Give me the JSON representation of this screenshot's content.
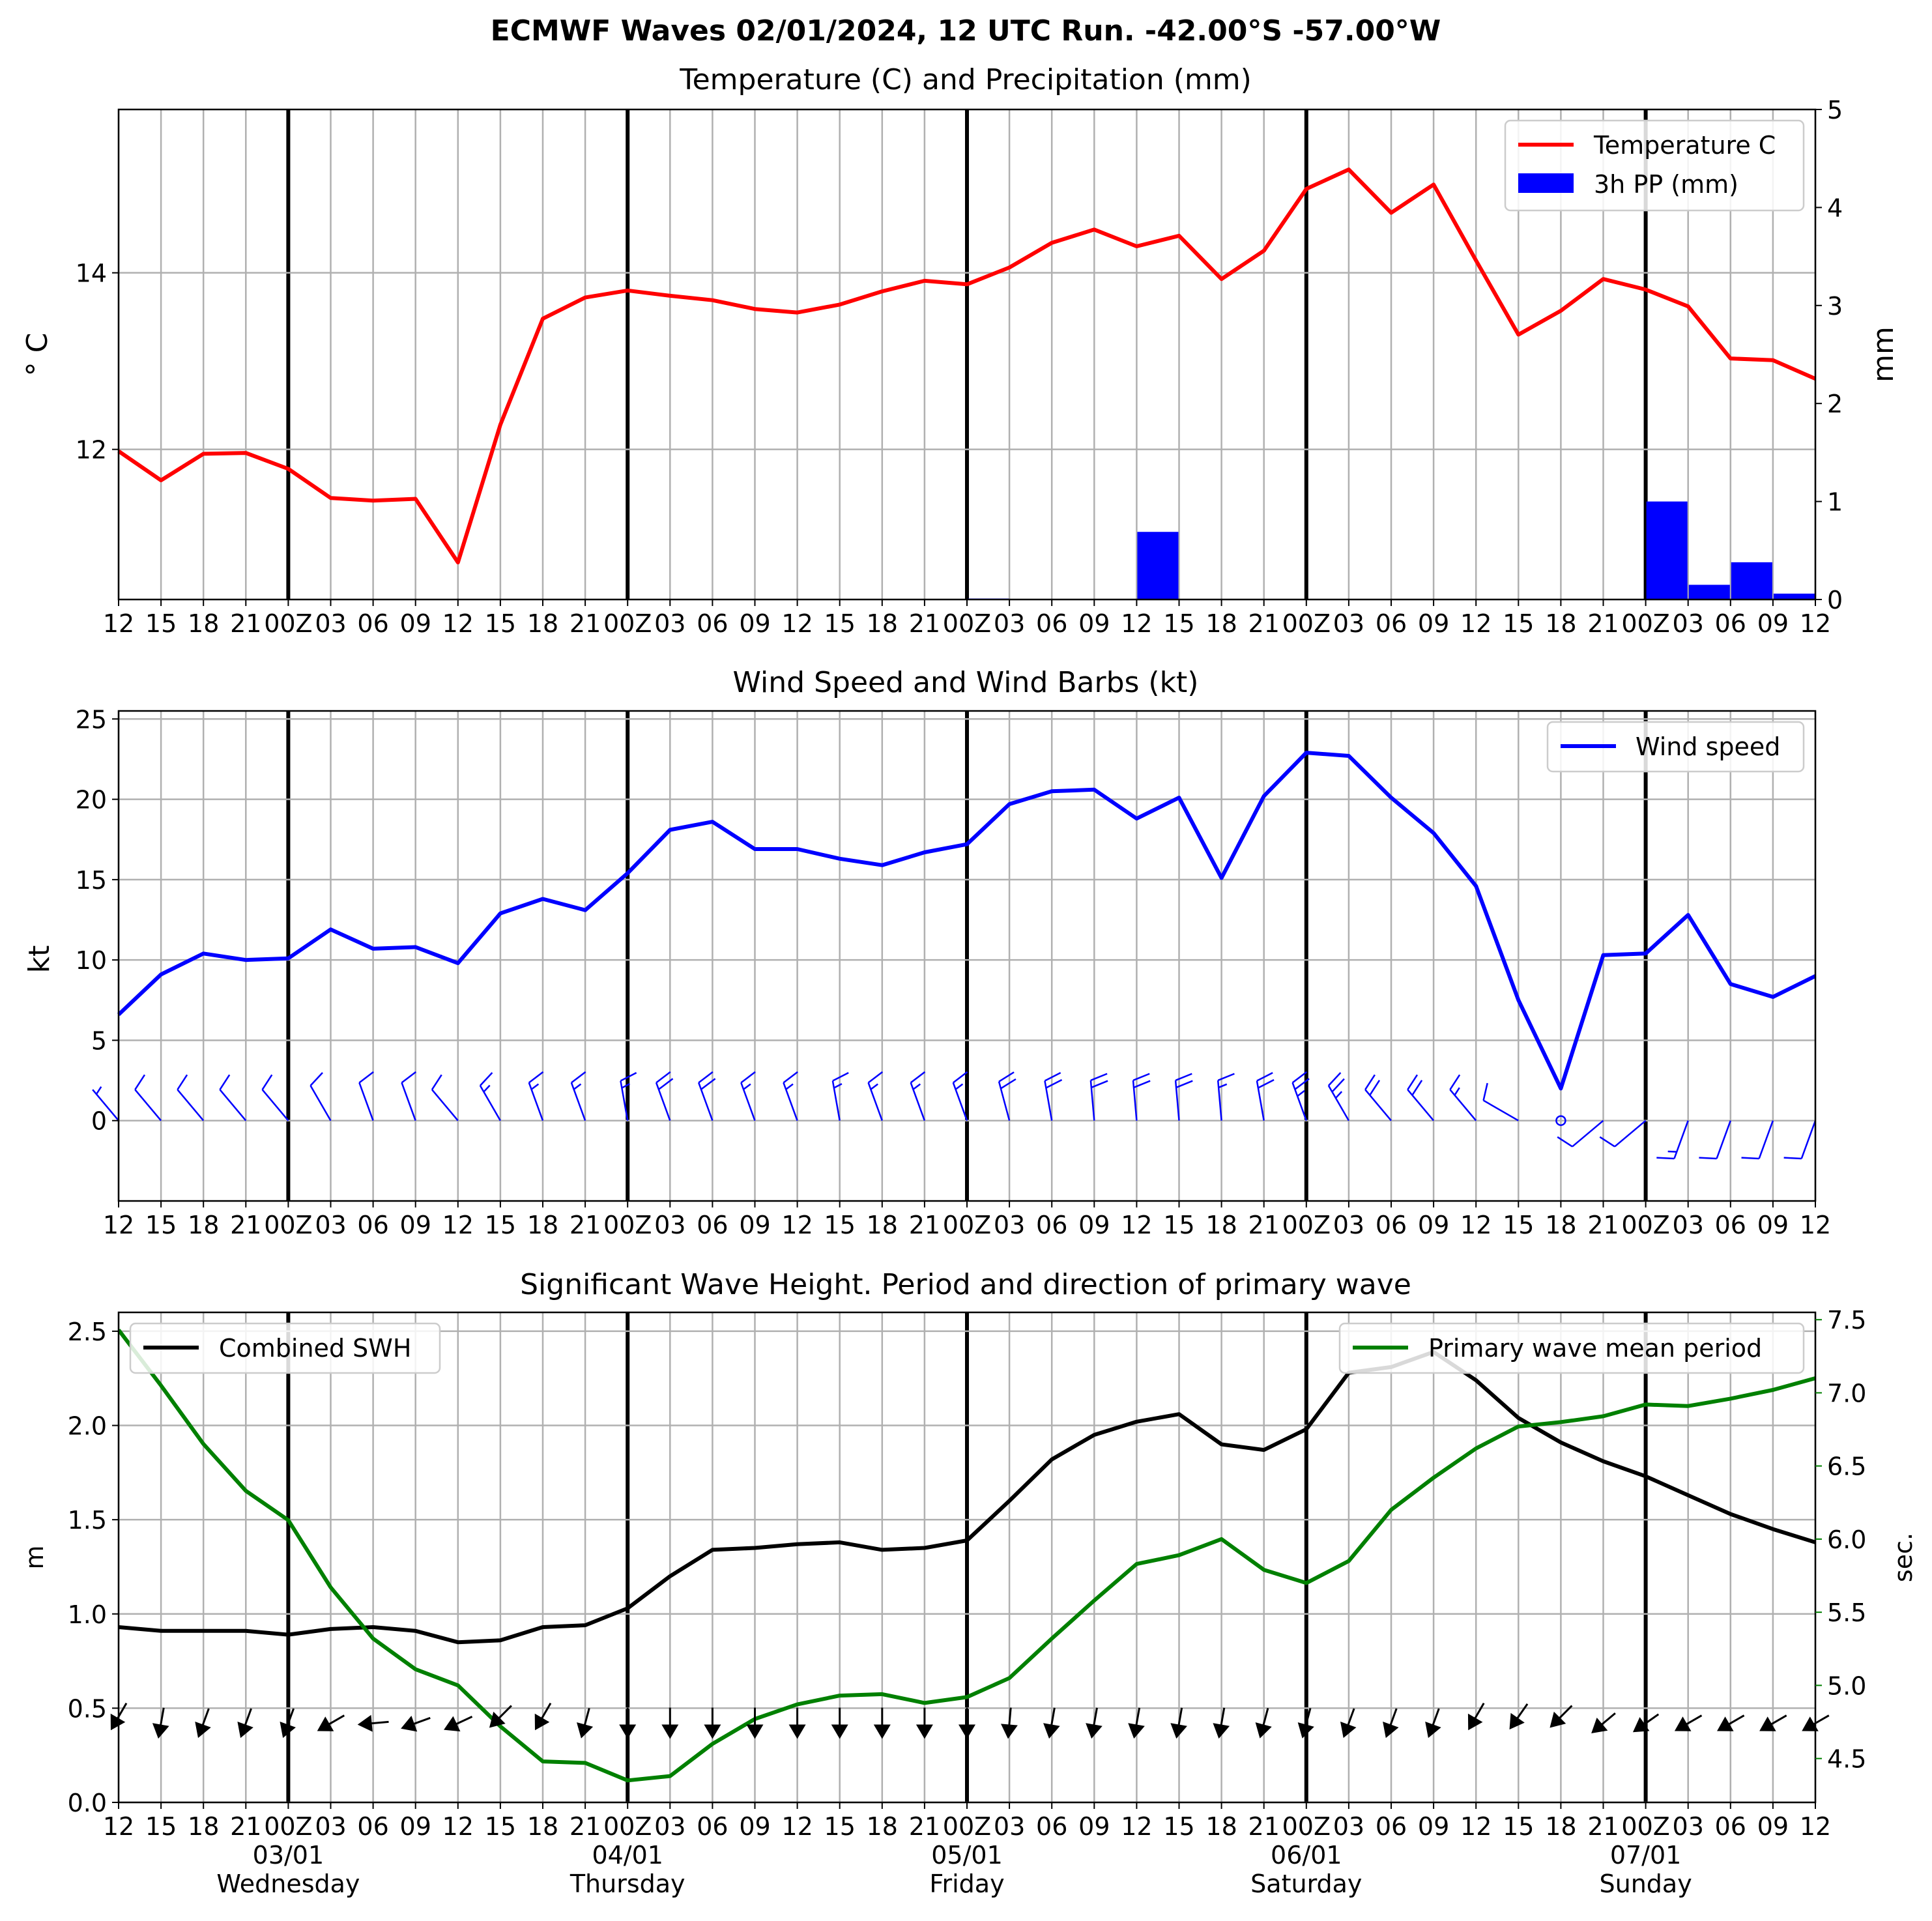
{
  "title": "ECMWF Waves 02/01/2024, 12 UTC Run. -42.00°S -57.00°W",
  "x_ticks": [
    "12",
    "15",
    "18",
    "21",
    "00Z",
    "03",
    "06",
    "09",
    "12",
    "15",
    "18",
    "21",
    "00Z",
    "03",
    "06",
    "09",
    "12",
    "15",
    "18",
    "21",
    "00Z",
    "03",
    "06",
    "09",
    "12",
    "15",
    "18",
    "21",
    "00Z",
    "03",
    "06",
    "09",
    "12",
    "15",
    "18",
    "21",
    "00Z",
    "03",
    "06",
    "09",
    "12"
  ],
  "day_labels": [
    {
      "date": "03/01",
      "day": "Wednesday",
      "index": 4
    },
    {
      "date": "04/01",
      "day": "Thursday",
      "index": 12
    },
    {
      "date": "05/01",
      "day": "Friday",
      "index": 20
    },
    {
      "date": "06/01",
      "day": "Saturday",
      "index": 28
    },
    {
      "date": "07/01",
      "day": "Sunday",
      "index": 36
    }
  ],
  "colors": {
    "temperature": "#ff0000",
    "precip": "#0000ff",
    "wind": "#0000ff",
    "swh": "#000000",
    "period": "#008000",
    "grid": "#b0b0b0"
  },
  "chart_data": [
    {
      "id": "temp",
      "type": "line",
      "title": "Temperature (C) and Precipitation (mm)",
      "ylabel": "$^\\circ$C",
      "ylabel_display": "° C",
      "y2label": "mm",
      "ylim": [
        10.3,
        15.85
      ],
      "y2lim": [
        0,
        5
      ],
      "yticks": [
        12,
        14
      ],
      "y2ticks": [
        0,
        1,
        2,
        3,
        4,
        5
      ],
      "legend_position": "top-right",
      "series": [
        {
          "name": "Temperature C",
          "values": [
            11.98,
            11.65,
            11.95,
            11.96,
            11.78,
            11.45,
            11.42,
            11.44,
            10.72,
            12.28,
            13.48,
            13.72,
            13.8,
            13.74,
            13.69,
            13.59,
            13.55,
            13.64,
            13.79,
            13.91,
            13.87,
            14.06,
            14.34,
            14.49,
            14.3,
            14.42,
            13.93,
            14.25,
            14.95,
            15.17,
            14.68,
            15.0,
            14.14,
            13.3,
            13.57,
            13.93,
            13.81,
            13.62,
            13.03,
            13.01,
            12.8
          ]
        },
        {
          "name": "3h PP (mm)",
          "kind": "bar",
          "axis": "right",
          "values": [
            0,
            0,
            0,
            0,
            0,
            0,
            0,
            0,
            0,
            0,
            0,
            0,
            0,
            0,
            0,
            0,
            0,
            0,
            0,
            0,
            0.01,
            0,
            0,
            0,
            0.69,
            0,
            0,
            0,
            0,
            0,
            0,
            0,
            0,
            0,
            0,
            0,
            1.0,
            0.15,
            0.38,
            0.06
          ]
        }
      ]
    },
    {
      "id": "wind",
      "type": "line",
      "title": "Wind Speed and Wind Barbs (kt)",
      "ylabel": "kt",
      "ylim": [
        -5,
        25.5
      ],
      "yticks": [
        0,
        5,
        10,
        15,
        20,
        25
      ],
      "legend_position": "top-right",
      "series": [
        {
          "name": "Wind speed",
          "values": [
            6.6,
            9.1,
            10.4,
            10.0,
            10.1,
            11.9,
            10.7,
            10.8,
            9.8,
            12.9,
            13.8,
            13.1,
            15.4,
            18.1,
            18.6,
            16.9,
            16.9,
            16.3,
            15.9,
            16.7,
            17.2,
            19.7,
            20.5,
            20.6,
            18.8,
            20.1,
            15.1,
            20.2,
            22.9,
            22.7,
            20.1,
            17.9,
            14.6,
            7.5,
            2.0,
            10.3,
            10.4,
            12.8,
            8.5,
            7.7,
            9.0
          ]
        }
      ],
      "barbs_direction_deg": [
        320,
        320,
        320,
        320,
        320,
        330,
        340,
        340,
        320,
        330,
        340,
        340,
        350,
        340,
        340,
        340,
        340,
        350,
        340,
        340,
        340,
        345,
        350,
        355,
        355,
        355,
        355,
        350,
        340,
        330,
        320,
        320,
        320,
        300,
        0,
        230,
        230,
        200,
        200,
        200,
        200
      ]
    },
    {
      "id": "wave",
      "type": "line",
      "title": "Significant Wave Height. Period and direction of primary wave",
      "ylabel": "m",
      "y2label": "sec.",
      "ylim": [
        0,
        2.6
      ],
      "y2lim": [
        4.2,
        7.55
      ],
      "yticks": [
        0.0,
        0.5,
        1.0,
        1.5,
        2.0,
        2.5
      ],
      "y2ticks": [
        4.5,
        5.0,
        5.5,
        6.0,
        6.5,
        7.0,
        7.5
      ],
      "legend_position": "top-left / top-right",
      "series": [
        {
          "name": "Combined SWH",
          "values": [
            0.93,
            0.91,
            0.91,
            0.91,
            0.89,
            0.92,
            0.93,
            0.91,
            0.85,
            0.86,
            0.93,
            0.94,
            1.03,
            1.2,
            1.34,
            1.35,
            1.37,
            1.38,
            1.34,
            1.35,
            1.39,
            1.6,
            1.82,
            1.95,
            2.02,
            2.06,
            1.9,
            1.87,
            1.98,
            2.28,
            2.31,
            2.39,
            2.24,
            2.04,
            1.91,
            1.81,
            1.73,
            1.63,
            1.53,
            1.45,
            1.38
          ]
        },
        {
          "name": "Primary wave mean period",
          "axis": "right",
          "values": [
            7.43,
            7.05,
            6.65,
            6.33,
            6.13,
            5.67,
            5.32,
            5.11,
            5.0,
            4.72,
            4.48,
            4.47,
            4.35,
            4.38,
            4.6,
            4.77,
            4.87,
            4.93,
            4.94,
            4.88,
            4.92,
            5.05,
            5.32,
            5.58,
            5.83,
            5.89,
            6.0,
            5.79,
            5.7,
            5.85,
            6.2,
            6.42,
            6.62,
            6.77,
            6.8,
            6.84,
            6.92,
            6.91,
            6.96,
            7.02,
            7.1
          ]
        }
      ],
      "arrow_direction_deg": [
        210,
        190,
        200,
        200,
        200,
        240,
        265,
        250,
        245,
        225,
        210,
        195,
        180,
        180,
        180,
        180,
        180,
        180,
        180,
        180,
        180,
        185,
        190,
        190,
        190,
        190,
        190,
        195,
        195,
        200,
        200,
        200,
        210,
        215,
        225,
        230,
        235,
        240,
        240,
        240,
        240
      ]
    }
  ]
}
